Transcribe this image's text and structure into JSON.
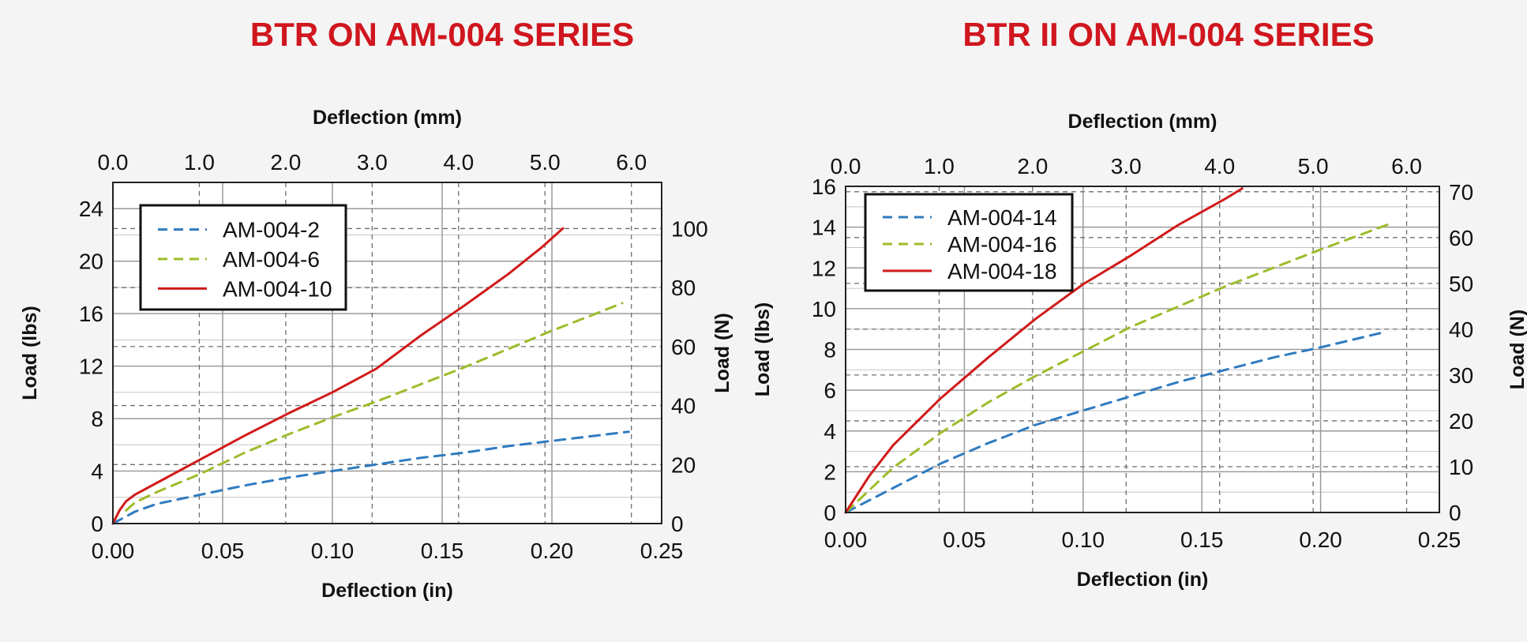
{
  "colors": {
    "title": "#d0161e",
    "blue": "#2f7bbf",
    "green": "#9cbc2a",
    "red": "#d11a1a"
  },
  "chart_data": [
    {
      "type": "line",
      "title": "BTR ON AM-004 SERIES",
      "xlabel": "Deflection (in)",
      "x2label": "Deflection (mm)",
      "ylabel": "Load (lbs)",
      "y2label": "Load (N)",
      "xlim": [
        0,
        0.25
      ],
      "ylim": [
        0,
        26
      ],
      "x2lim": [
        0,
        6.35
      ],
      "y2lim": [
        0,
        115.65
      ],
      "x_ticks": [
        "0.00",
        "0.05",
        "0.10",
        "0.15",
        "0.20",
        "0.25"
      ],
      "y_ticks": [
        "0",
        "4",
        "8",
        "12",
        "16",
        "20",
        "24"
      ],
      "x2_ticks": [
        "0.0",
        "1.0",
        "2.0",
        "3.0",
        "4.0",
        "5.0",
        "6.0"
      ],
      "y2_ticks": [
        "0",
        "20",
        "40",
        "60",
        "80",
        "100"
      ],
      "grid": true,
      "legend_position": "top-left",
      "series": [
        {
          "name": "AM-004-2",
          "style": "dashed",
          "color": "#2f7bbf",
          "x": [
            0,
            0.01,
            0.02,
            0.04,
            0.06,
            0.08,
            0.1,
            0.12,
            0.14,
            0.16,
            0.18,
            0.2,
            0.22,
            0.235
          ],
          "y": [
            0,
            0.9,
            1.5,
            2.2,
            2.9,
            3.5,
            4.0,
            4.5,
            5.0,
            5.4,
            5.9,
            6.3,
            6.7,
            7.0
          ]
        },
        {
          "name": "AM-004-6",
          "style": "dashed",
          "color": "#9cbc2a",
          "x": [
            0.006,
            0.01,
            0.02,
            0.04,
            0.06,
            0.08,
            0.1,
            0.12,
            0.14,
            0.16,
            0.18,
            0.2,
            0.22,
            0.232
          ],
          "y": [
            1.0,
            1.6,
            2.4,
            3.8,
            5.4,
            6.8,
            8.1,
            9.3,
            10.6,
            11.9,
            13.3,
            14.7,
            16.0,
            16.8
          ]
        },
        {
          "name": "AM-004-10",
          "style": "solid",
          "color": "#d11a1a",
          "x": [
            0,
            0.003,
            0.006,
            0.01,
            0.02,
            0.04,
            0.06,
            0.08,
            0.1,
            0.12,
            0.14,
            0.16,
            0.18,
            0.195,
            0.205
          ],
          "y": [
            0,
            1.0,
            1.7,
            2.2,
            3.1,
            4.9,
            6.7,
            8.4,
            10.0,
            11.8,
            14.3,
            16.6,
            19.0,
            21.0,
            22.5
          ]
        }
      ]
    },
    {
      "type": "line",
      "title": "BTR II ON AM-004 SERIES",
      "xlabel": "Deflection (in)",
      "x2label": "Deflection (mm)",
      "ylabel": "Load (lbs)",
      "y2label": "Load (N)",
      "xlim": [
        0,
        0.25
      ],
      "ylim": [
        0,
        16
      ],
      "x2lim": [
        0,
        6.35
      ],
      "y2lim": [
        0,
        71.17
      ],
      "x_ticks": [
        "0.00",
        "0.05",
        "0.10",
        "0.15",
        "0.20",
        "0.25"
      ],
      "y_ticks": [
        "0",
        "2",
        "4",
        "6",
        "8",
        "10",
        "12",
        "14",
        "16"
      ],
      "x2_ticks": [
        "0.0",
        "1.0",
        "2.0",
        "3.0",
        "4.0",
        "5.0",
        "6.0"
      ],
      "y2_ticks": [
        "0",
        "10",
        "20",
        "30",
        "40",
        "50",
        "60",
        "70"
      ],
      "grid": true,
      "legend_position": "top-left",
      "series": [
        {
          "name": "AM-004-14",
          "style": "dashed",
          "color": "#2f7bbf",
          "x": [
            0,
            0.02,
            0.04,
            0.06,
            0.08,
            0.1,
            0.12,
            0.14,
            0.16,
            0.18,
            0.2,
            0.225
          ],
          "y": [
            0,
            1.2,
            2.4,
            3.4,
            4.3,
            5.0,
            5.7,
            6.4,
            7.0,
            7.6,
            8.1,
            8.8
          ]
        },
        {
          "name": "AM-004-16",
          "style": "dashed",
          "color": "#9cbc2a",
          "x": [
            0,
            0.02,
            0.04,
            0.06,
            0.08,
            0.1,
            0.12,
            0.14,
            0.16,
            0.18,
            0.2,
            0.23
          ],
          "y": [
            0,
            2.2,
            3.9,
            5.4,
            6.7,
            7.9,
            9.1,
            10.1,
            11.1,
            12.0,
            12.9,
            14.2
          ]
        },
        {
          "name": "AM-004-18",
          "style": "solid",
          "color": "#d11a1a",
          "x": [
            0,
            0.01,
            0.02,
            0.04,
            0.06,
            0.08,
            0.1,
            0.12,
            0.14,
            0.16,
            0.167
          ],
          "y": [
            0,
            1.8,
            3.3,
            5.6,
            7.6,
            9.5,
            11.2,
            12.6,
            14.1,
            15.4,
            15.9
          ]
        }
      ]
    }
  ]
}
